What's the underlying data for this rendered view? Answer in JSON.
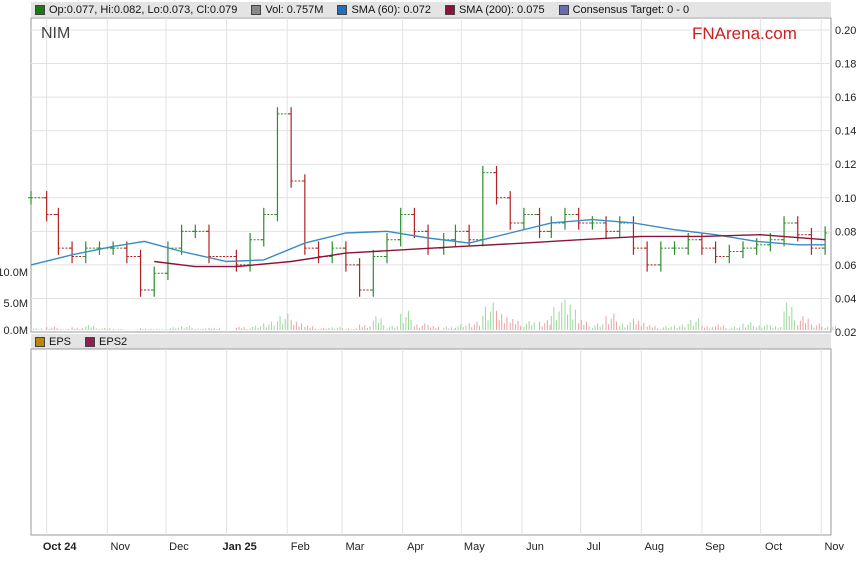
{
  "ticker": "NIM",
  "brand": "FNArena.com",
  "legend": [
    {
      "label": "Op:0.077, Hi:0.082, Lo:0.073, Cl:0.079",
      "color": "#1a7a1a",
      "icon": "ohlc-swatch"
    },
    {
      "label": "Vol: 0.757M",
      "color": "#888888",
      "icon": "volume-swatch"
    },
    {
      "label": "SMA (60): 0.072",
      "color": "#2a6db5",
      "icon": "sma60-swatch"
    },
    {
      "label": "SMA (200): 0.075",
      "color": "#8b1538",
      "icon": "sma200-swatch"
    },
    {
      "label": "Consensus Target: 0 - 0",
      "color": "#6a6ab0",
      "icon": "target-swatch"
    }
  ],
  "eps_legend": [
    {
      "label": "EPS",
      "color": "#b8860b"
    },
    {
      "label": "EPS2",
      "color": "#8b2252"
    }
  ],
  "chart_data": {
    "type": "line",
    "title": "",
    "ylim": [
      0.02,
      0.2
    ],
    "y_ticks": [
      "0.20",
      "0.18",
      "0.16",
      "0.14",
      "0.12",
      "0.10",
      "0.08",
      "0.06",
      "0.04",
      "0.02"
    ],
    "volume_ticks": [
      "10.0M",
      "0.0M"
    ],
    "x_tick_labels": [
      "Oct 24",
      "Nov",
      "Dec",
      "Jan 25",
      "Feb",
      "Mar",
      "Apr",
      "May",
      "Jun",
      "Jul",
      "Aug",
      "Sep",
      "Oct",
      "Nov"
    ],
    "colors": {
      "up": "#2e8b2e",
      "down": "#b22222",
      "sma60": "#3a8cc4",
      "sma200": "#8b1538"
    },
    "price": {
      "dates": [
        "2024-09-23",
        "2024-10-01",
        "2024-10-07",
        "2024-10-14",
        "2024-10-21",
        "2024-10-28",
        "2024-11-04",
        "2024-11-11",
        "2024-11-18",
        "2024-11-25",
        "2024-12-02",
        "2024-12-09",
        "2024-12-16",
        "2024-12-23",
        "2025-01-06",
        "2025-01-13",
        "2025-01-20",
        "2025-01-27",
        "2025-02-03",
        "2025-02-10",
        "2025-02-17",
        "2025-02-24",
        "2025-03-03",
        "2025-03-10",
        "2025-03-17",
        "2025-03-24",
        "2025-03-31",
        "2025-04-07",
        "2025-04-14",
        "2025-04-22",
        "2025-04-28",
        "2025-05-05",
        "2025-05-12",
        "2025-05-19",
        "2025-05-26",
        "2025-06-02",
        "2025-06-10",
        "2025-06-16",
        "2025-06-23",
        "2025-06-30",
        "2025-07-07",
        "2025-07-14",
        "2025-07-21",
        "2025-07-28",
        "2025-08-04",
        "2025-08-11",
        "2025-08-18",
        "2025-08-25",
        "2025-09-01",
        "2025-09-08",
        "2025-09-15",
        "2025-09-22",
        "2025-09-29",
        "2025-10-06",
        "2025-10-13",
        "2025-10-20",
        "2025-10-27",
        "2025-11-03"
      ],
      "close": [
        0.1,
        0.09,
        0.07,
        0.065,
        0.07,
        0.07,
        0.07,
        0.065,
        0.045,
        0.055,
        0.07,
        0.08,
        0.08,
        0.065,
        0.06,
        0.075,
        0.09,
        0.15,
        0.11,
        0.07,
        0.065,
        0.07,
        0.06,
        0.045,
        0.065,
        0.075,
        0.09,
        0.08,
        0.07,
        0.075,
        0.08,
        0.075,
        0.115,
        0.1,
        0.085,
        0.09,
        0.08,
        0.085,
        0.09,
        0.085,
        0.085,
        0.08,
        0.085,
        0.07,
        0.06,
        0.07,
        0.07,
        0.075,
        0.07,
        0.065,
        0.068,
        0.07,
        0.072,
        0.075,
        0.085,
        0.078,
        0.07,
        0.079
      ]
    },
    "sma60": {
      "dates": [
        "2024-09-23",
        "2024-10-14",
        "2024-11-04",
        "2024-11-20",
        "2024-12-09",
        "2025-01-01",
        "2025-01-20",
        "2025-02-10",
        "2025-03-03",
        "2025-03-24",
        "2025-04-14",
        "2025-05-05",
        "2025-05-26",
        "2025-06-16",
        "2025-07-07",
        "2025-07-28",
        "2025-08-18",
        "2025-09-08",
        "2025-09-29",
        "2025-10-20",
        "2025-11-03"
      ],
      "values": [
        0.06,
        0.066,
        0.071,
        0.074,
        0.068,
        0.062,
        0.063,
        0.073,
        0.079,
        0.08,
        0.076,
        0.073,
        0.079,
        0.085,
        0.087,
        0.085,
        0.081,
        0.078,
        0.074,
        0.072,
        0.072
      ]
    },
    "sma200": {
      "dates": [
        "2024-11-25",
        "2024-12-16",
        "2025-01-06",
        "2025-02-03",
        "2025-03-03",
        "2025-04-01",
        "2025-05-01",
        "2025-06-02",
        "2025-07-01",
        "2025-08-01",
        "2025-09-01",
        "2025-10-01",
        "2025-11-03"
      ],
      "values": [
        0.062,
        0.059,
        0.059,
        0.062,
        0.067,
        0.069,
        0.071,
        0.073,
        0.075,
        0.077,
        0.077,
        0.078,
        0.075
      ]
    },
    "volume_m": [
      0.3,
      0.6,
      0.2,
      0.5,
      0.9,
      0.4,
      0.2,
      0.1,
      0.3,
      0.2,
      0.5,
      0.8,
      0.3,
      0.4,
      0.6,
      0.8,
      1.5,
      3.0,
      1.8,
      0.8,
      0.4,
      0.6,
      0.3,
      1.0,
      2.5,
      0.8,
      3.5,
      1.2,
      0.9,
      0.6,
      1.0,
      1.5,
      5.0,
      3.5,
      2.0,
      1.6,
      1.8,
      5.0,
      5.5,
      1.8,
      1.2,
      3.0,
      1.4,
      2.0,
      0.9,
      0.7,
      1.0,
      2.2,
      0.8,
      1.0,
      0.6,
      1.4,
      1.0,
      0.8,
      5.0,
      2.5,
      1.2,
      0.757
    ]
  }
}
